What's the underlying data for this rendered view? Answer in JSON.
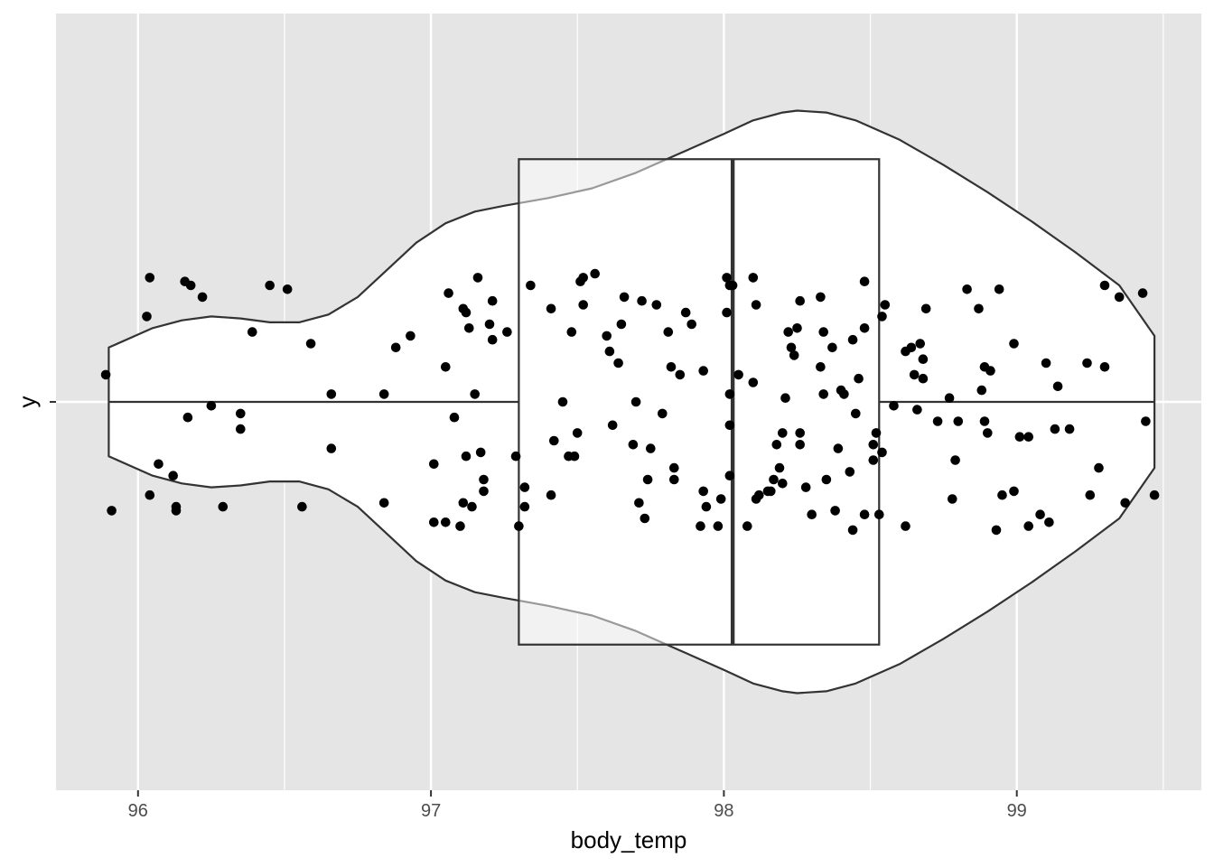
{
  "chart_data": {
    "type": "violin",
    "xlabel": "body_temp",
    "ylabel": "y",
    "x_ticks": [
      96,
      97,
      98,
      99
    ],
    "xlim": [
      95.72,
      99.63
    ],
    "y_ticks": [
      ""
    ],
    "grid": true,
    "background": "#e5e5e5",
    "colors": {
      "fill": "#ffffff",
      "outline": "#333333",
      "point": "#000000",
      "grid": "#ffffff",
      "tick_text": "#4d4d4d"
    },
    "violin": {
      "x_range": [
        95.9,
        99.47
      ],
      "max_half_width": 0.75,
      "density_profile": [
        [
          95.9,
          0.14
        ],
        [
          96.05,
          0.19
        ],
        [
          96.15,
          0.21
        ],
        [
          96.25,
          0.22
        ],
        [
          96.35,
          0.215
        ],
        [
          96.45,
          0.205
        ],
        [
          96.55,
          0.205
        ],
        [
          96.65,
          0.225
        ],
        [
          96.75,
          0.27
        ],
        [
          96.85,
          0.34
        ],
        [
          96.95,
          0.41
        ],
        [
          97.05,
          0.46
        ],
        [
          97.15,
          0.49
        ],
        [
          97.25,
          0.505
        ],
        [
          97.4,
          0.525
        ],
        [
          97.55,
          0.55
        ],
        [
          97.7,
          0.59
        ],
        [
          97.85,
          0.64
        ],
        [
          98.0,
          0.69
        ],
        [
          98.1,
          0.725
        ],
        [
          98.2,
          0.745
        ],
        [
          98.25,
          0.75
        ],
        [
          98.35,
          0.745
        ],
        [
          98.45,
          0.725
        ],
        [
          98.6,
          0.675
        ],
        [
          98.75,
          0.61
        ],
        [
          98.9,
          0.54
        ],
        [
          99.05,
          0.465
        ],
        [
          99.2,
          0.385
        ],
        [
          99.35,
          0.3
        ],
        [
          99.47,
          0.17
        ]
      ]
    },
    "boxplot": {
      "lower_whisker": 95.9,
      "q1": 97.3,
      "median": 98.03,
      "q3": 98.53,
      "upper_whisker": 99.47,
      "half_width": 0.625
    },
    "points": [
      [
        95.89,
        0.07
      ],
      [
        95.91,
        -0.28
      ],
      [
        96.03,
        0.22
      ],
      [
        96.04,
        0.32
      ],
      [
        96.04,
        -0.24
      ],
      [
        96.07,
        -0.16
      ],
      [
        96.12,
        -0.19
      ],
      [
        96.13,
        -0.27
      ],
      [
        96.13,
        -0.28
      ],
      [
        96.16,
        0.31
      ],
      [
        96.17,
        -0.04
      ],
      [
        96.18,
        0.3
      ],
      [
        96.22,
        0.27
      ],
      [
        96.25,
        -0.01
      ],
      [
        96.29,
        -0.27
      ],
      [
        96.35,
        -0.07
      ],
      [
        96.35,
        -0.03
      ],
      [
        96.39,
        0.18
      ],
      [
        96.45,
        0.3
      ],
      [
        96.51,
        0.29
      ],
      [
        96.56,
        -0.27
      ],
      [
        96.59,
        0.15
      ],
      [
        96.66,
        0.02
      ],
      [
        96.66,
        -0.12
      ],
      [
        96.84,
        0.02
      ],
      [
        96.84,
        -0.26
      ],
      [
        96.88,
        0.14
      ],
      [
        96.93,
        0.17
      ],
      [
        97.01,
        -0.16
      ],
      [
        97.01,
        -0.31
      ],
      [
        97.05,
        -0.31
      ],
      [
        97.05,
        0.09
      ],
      [
        97.06,
        0.28
      ],
      [
        97.08,
        -0.04
      ],
      [
        97.1,
        -0.32
      ],
      [
        97.11,
        0.24
      ],
      [
        97.11,
        -0.26
      ],
      [
        97.12,
        0.23
      ],
      [
        97.12,
        -0.14
      ],
      [
        97.13,
        0.19
      ],
      [
        97.14,
        -0.27
      ],
      [
        97.15,
        0.02
      ],
      [
        97.16,
        0.32
      ],
      [
        97.17,
        -0.13
      ],
      [
        97.18,
        -0.23
      ],
      [
        97.18,
        -0.2
      ],
      [
        97.2,
        0.2
      ],
      [
        97.21,
        0.16
      ],
      [
        97.21,
        0.26
      ],
      [
        97.26,
        0.18
      ],
      [
        97.29,
        -0.14
      ],
      [
        97.3,
        -0.32
      ],
      [
        97.32,
        -0.22
      ],
      [
        97.32,
        -0.27
      ],
      [
        97.34,
        0.3
      ],
      [
        97.41,
        0.24
      ],
      [
        97.41,
        -0.24
      ],
      [
        97.42,
        -0.1
      ],
      [
        97.45,
        0
      ],
      [
        97.47,
        -0.14
      ],
      [
        97.48,
        0.18
      ],
      [
        97.49,
        -0.14
      ],
      [
        97.5,
        -0.08
      ],
      [
        97.51,
        0.31
      ],
      [
        97.52,
        0.32
      ],
      [
        97.52,
        0.25
      ],
      [
        97.56,
        0.33
      ],
      [
        97.6,
        0.17
      ],
      [
        97.61,
        0.13
      ],
      [
        97.62,
        -0.06
      ],
      [
        97.64,
        0.1
      ],
      [
        97.65,
        0.2
      ],
      [
        97.66,
        0.27
      ],
      [
        97.69,
        -0.11
      ],
      [
        97.7,
        0
      ],
      [
        97.71,
        -0.26
      ],
      [
        97.72,
        0.26
      ],
      [
        97.73,
        -0.3
      ],
      [
        97.74,
        -0.2
      ],
      [
        97.75,
        -0.12
      ],
      [
        97.77,
        0.25
      ],
      [
        97.79,
        -0.03
      ],
      [
        97.81,
        0.18
      ],
      [
        97.82,
        0.09
      ],
      [
        97.83,
        -0.2
      ],
      [
        97.83,
        -0.17
      ],
      [
        97.85,
        0.07
      ],
      [
        97.87,
        0.23
      ],
      [
        97.89,
        0.2
      ],
      [
        97.92,
        -0.32
      ],
      [
        97.93,
        0.08
      ],
      [
        97.93,
        -0.23
      ],
      [
        97.94,
        -0.27
      ],
      [
        97.98,
        -0.32
      ],
      [
        97.99,
        -0.25
      ],
      [
        98.01,
        0.32
      ],
      [
        98.01,
        0.23
      ],
      [
        98.02,
        0.3
      ],
      [
        98.02,
        -0.19
      ],
      [
        98.02,
        0.02
      ],
      [
        98.02,
        -0.06
      ],
      [
        98.03,
        0.3
      ],
      [
        98.05,
        0.07
      ],
      [
        98.08,
        -0.32
      ],
      [
        98.1,
        0.32
      ],
      [
        98.1,
        0.05
      ],
      [
        98.11,
        -0.25
      ],
      [
        98.11,
        0.25
      ],
      [
        98.12,
        -0.24
      ],
      [
        98.15,
        -0.23
      ],
      [
        98.16,
        -0.23
      ],
      [
        98.17,
        -0.2
      ],
      [
        98.18,
        -0.11
      ],
      [
        98.19,
        -0.17
      ],
      [
        98.2,
        -0.21
      ],
      [
        98.2,
        -0.08
      ],
      [
        98.21,
        0.01
      ],
      [
        98.22,
        0.18
      ],
      [
        98.23,
        0.14
      ],
      [
        98.24,
        0.12
      ],
      [
        98.25,
        0.19
      ],
      [
        98.26,
        0.26
      ],
      [
        98.26,
        -0.08
      ],
      [
        98.26,
        -0.11
      ],
      [
        98.28,
        -0.22
      ],
      [
        98.3,
        -0.29
      ],
      [
        98.33,
        0.27
      ],
      [
        98.33,
        0.09
      ],
      [
        98.34,
        0.02
      ],
      [
        98.34,
        0.18
      ],
      [
        98.35,
        -0.2
      ],
      [
        98.37,
        0.14
      ],
      [
        98.38,
        -0.28
      ],
      [
        98.39,
        -0.12
      ],
      [
        98.4,
        0.03
      ],
      [
        98.41,
        0.02
      ],
      [
        98.43,
        -0.18
      ],
      [
        98.44,
        0.16
      ],
      [
        98.44,
        -0.33
      ],
      [
        98.45,
        -0.03
      ],
      [
        98.46,
        0.06
      ],
      [
        98.48,
        0.19
      ],
      [
        98.48,
        -0.29
      ],
      [
        98.48,
        0.31
      ],
      [
        98.51,
        -0.11
      ],
      [
        98.51,
        -0.15
      ],
      [
        98.52,
        -0.08
      ],
      [
        98.53,
        -0.29
      ],
      [
        98.54,
        -0.13
      ],
      [
        98.54,
        0.22
      ],
      [
        98.55,
        0.25
      ],
      [
        98.58,
        -0.01
      ],
      [
        98.62,
        0.13
      ],
      [
        98.62,
        -0.32
      ],
      [
        98.64,
        0.14
      ],
      [
        98.65,
        0.07
      ],
      [
        98.66,
        -0.02
      ],
      [
        98.67,
        0.15
      ],
      [
        98.68,
        0.11
      ],
      [
        98.68,
        0.06
      ],
      [
        98.69,
        0.24
      ],
      [
        98.73,
        -0.05
      ],
      [
        98.77,
        0.01
      ],
      [
        98.78,
        -0.25
      ],
      [
        98.79,
        -0.15
      ],
      [
        98.8,
        -0.05
      ],
      [
        98.83,
        0.29
      ],
      [
        98.87,
        0.24
      ],
      [
        98.88,
        0.03
      ],
      [
        98.89,
        0.09
      ],
      [
        98.89,
        -0.05
      ],
      [
        98.9,
        -0.08
      ],
      [
        98.91,
        0.08
      ],
      [
        98.93,
        -0.33
      ],
      [
        98.94,
        0.29
      ],
      [
        98.95,
        -0.24
      ],
      [
        98.99,
        0.15
      ],
      [
        98.99,
        -0.23
      ],
      [
        99.01,
        -0.09
      ],
      [
        99.04,
        -0.32
      ],
      [
        99.04,
        -0.09
      ],
      [
        99.08,
        -0.29
      ],
      [
        99.1,
        0.1
      ],
      [
        99.11,
        -0.31
      ],
      [
        99.13,
        -0.07
      ],
      [
        99.14,
        0.04
      ],
      [
        99.18,
        -0.07
      ],
      [
        99.24,
        0.1
      ],
      [
        99.25,
        -0.24
      ],
      [
        99.28,
        -0.17
      ],
      [
        99.3,
        0.3
      ],
      [
        99.3,
        0.09
      ],
      [
        99.35,
        0.27
      ],
      [
        99.37,
        -0.26
      ],
      [
        99.43,
        0.28
      ],
      [
        99.44,
        -0.05
      ],
      [
        99.47,
        -0.24
      ]
    ]
  }
}
